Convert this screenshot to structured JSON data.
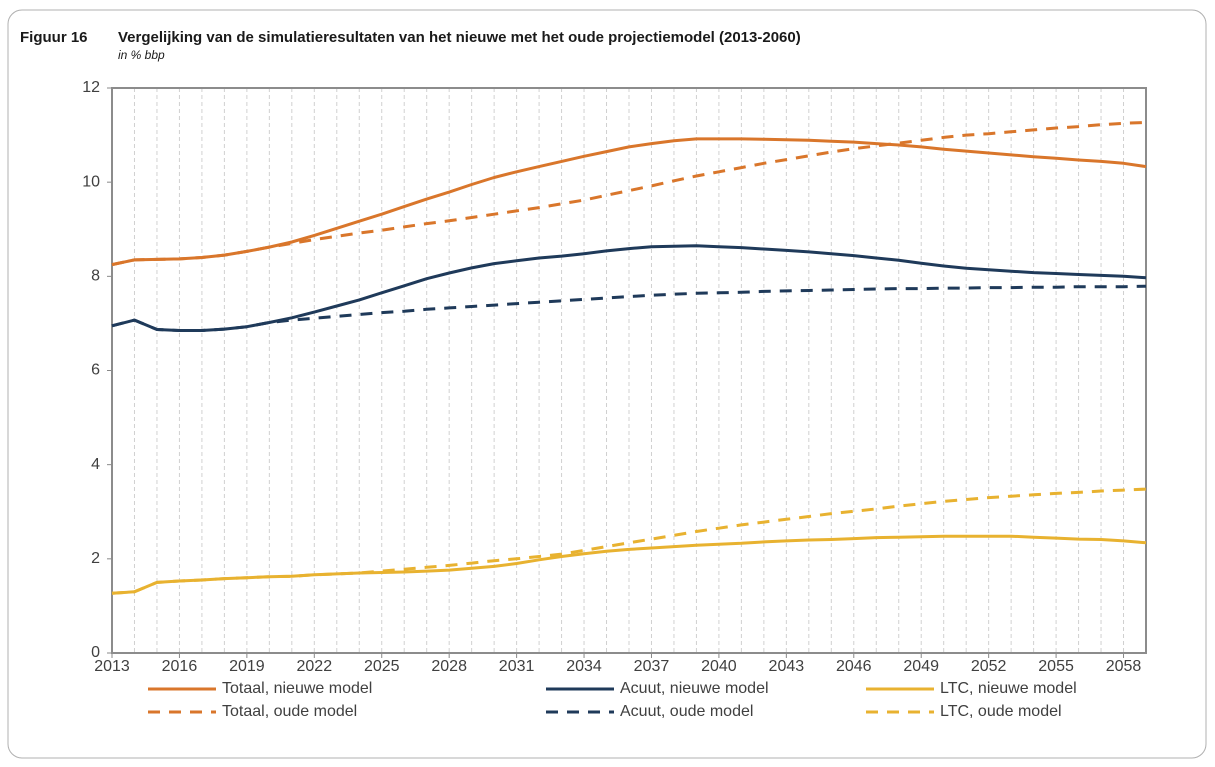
{
  "chart_data": {
    "type": "line",
    "figure_label": "Figuur 16",
    "title": "Vergelijking van de simulatieresultaten van het nieuwe met het oude projectiemodel (2013-2060)",
    "subtitle": "in % bbp",
    "x": [
      2013,
      2014,
      2015,
      2016,
      2017,
      2018,
      2019,
      2020,
      2021,
      2022,
      2023,
      2024,
      2025,
      2026,
      2027,
      2028,
      2029,
      2030,
      2031,
      2032,
      2033,
      2034,
      2035,
      2036,
      2037,
      2038,
      2039,
      2040,
      2041,
      2042,
      2043,
      2044,
      2045,
      2046,
      2047,
      2048,
      2049,
      2050,
      2051,
      2052,
      2053,
      2054,
      2055,
      2056,
      2057,
      2058,
      2059
    ],
    "xlim": [
      2013,
      2059
    ],
    "xticks": [
      2013,
      2016,
      2019,
      2022,
      2025,
      2028,
      2031,
      2034,
      2037,
      2040,
      2043,
      2046,
      2049,
      2052,
      2055,
      2058
    ],
    "ylim": [
      0,
      12
    ],
    "yticks": [
      0,
      2,
      4,
      6,
      8,
      10,
      12
    ],
    "grid": true,
    "series": [
      {
        "name": "Totaal, nieuwe model",
        "color": "#d9762b",
        "dashed": false,
        "values": [
          8.25,
          8.35,
          8.36,
          8.37,
          8.4,
          8.45,
          8.53,
          8.62,
          8.73,
          8.87,
          9.02,
          9.17,
          9.32,
          9.48,
          9.64,
          9.79,
          9.95,
          10.1,
          10.22,
          10.33,
          10.44,
          10.55,
          10.65,
          10.75,
          10.82,
          10.88,
          10.92,
          10.92,
          10.92,
          10.91,
          10.9,
          10.89,
          10.87,
          10.85,
          10.82,
          10.79,
          10.75,
          10.7,
          10.66,
          10.62,
          10.58,
          10.54,
          10.51,
          10.47,
          10.44,
          10.4,
          10.33
        ]
      },
      {
        "name": "Totaal, oude model",
        "color": "#d9762b",
        "dashed": true,
        "values": [
          8.25,
          8.35,
          8.36,
          8.37,
          8.4,
          8.45,
          8.53,
          8.62,
          8.7,
          8.78,
          8.85,
          8.92,
          8.98,
          9.05,
          9.12,
          9.18,
          9.25,
          9.32,
          9.39,
          9.46,
          9.54,
          9.62,
          9.72,
          9.82,
          9.92,
          10.03,
          10.13,
          10.22,
          10.31,
          10.4,
          10.48,
          10.56,
          10.64,
          10.71,
          10.77,
          10.83,
          10.89,
          10.95,
          11.0,
          11.03,
          11.07,
          11.11,
          11.15,
          11.18,
          11.22,
          11.25,
          11.27
        ]
      },
      {
        "name": "Acuut, nieuwe model",
        "color": "#1f3a5a",
        "dashed": false,
        "values": [
          6.95,
          7.07,
          6.87,
          6.85,
          6.85,
          6.88,
          6.93,
          7.02,
          7.12,
          7.24,
          7.37,
          7.5,
          7.65,
          7.8,
          7.95,
          8.07,
          8.18,
          8.27,
          8.33,
          8.39,
          8.43,
          8.48,
          8.54,
          8.59,
          8.63,
          8.64,
          8.65,
          8.63,
          8.61,
          8.58,
          8.55,
          8.52,
          8.48,
          8.44,
          8.39,
          8.34,
          8.28,
          8.22,
          8.17,
          8.14,
          8.11,
          8.08,
          8.06,
          8.04,
          8.02,
          8.0,
          7.97
        ]
      },
      {
        "name": "Acuut, oude model",
        "color": "#1f3a5a",
        "dashed": true,
        "values": [
          6.95,
          7.07,
          6.87,
          6.85,
          6.85,
          6.88,
          6.93,
          7.02,
          7.07,
          7.11,
          7.15,
          7.19,
          7.23,
          7.26,
          7.3,
          7.33,
          7.36,
          7.39,
          7.42,
          7.45,
          7.48,
          7.51,
          7.54,
          7.57,
          7.6,
          7.62,
          7.64,
          7.65,
          7.66,
          7.68,
          7.69,
          7.7,
          7.71,
          7.72,
          7.73,
          7.74,
          7.74,
          7.75,
          7.75,
          7.76,
          7.76,
          7.77,
          7.77,
          7.78,
          7.78,
          7.78,
          7.79
        ]
      },
      {
        "name": "LTC, nieuwe model",
        "color": "#e8b230",
        "dashed": false,
        "values": [
          1.27,
          1.3,
          1.5,
          1.53,
          1.55,
          1.58,
          1.6,
          1.62,
          1.63,
          1.66,
          1.68,
          1.7,
          1.71,
          1.72,
          1.74,
          1.76,
          1.8,
          1.84,
          1.9,
          1.98,
          2.05,
          2.11,
          2.16,
          2.2,
          2.23,
          2.26,
          2.29,
          2.31,
          2.33,
          2.36,
          2.38,
          2.4,
          2.41,
          2.43,
          2.45,
          2.46,
          2.47,
          2.48,
          2.48,
          2.48,
          2.48,
          2.46,
          2.44,
          2.42,
          2.41,
          2.38,
          2.34
        ]
      },
      {
        "name": "LTC, oude model",
        "color": "#e8b230",
        "dashed": true,
        "values": [
          1.27,
          1.3,
          1.5,
          1.53,
          1.55,
          1.58,
          1.6,
          1.62,
          1.63,
          1.66,
          1.68,
          1.7,
          1.74,
          1.78,
          1.82,
          1.86,
          1.91,
          1.96,
          2.0,
          2.05,
          2.1,
          2.18,
          2.26,
          2.34,
          2.42,
          2.5,
          2.58,
          2.65,
          2.72,
          2.78,
          2.84,
          2.9,
          2.96,
          3.01,
          3.06,
          3.12,
          3.17,
          3.22,
          3.26,
          3.3,
          3.33,
          3.36,
          3.39,
          3.41,
          3.44,
          3.46,
          3.48
        ]
      }
    ]
  }
}
